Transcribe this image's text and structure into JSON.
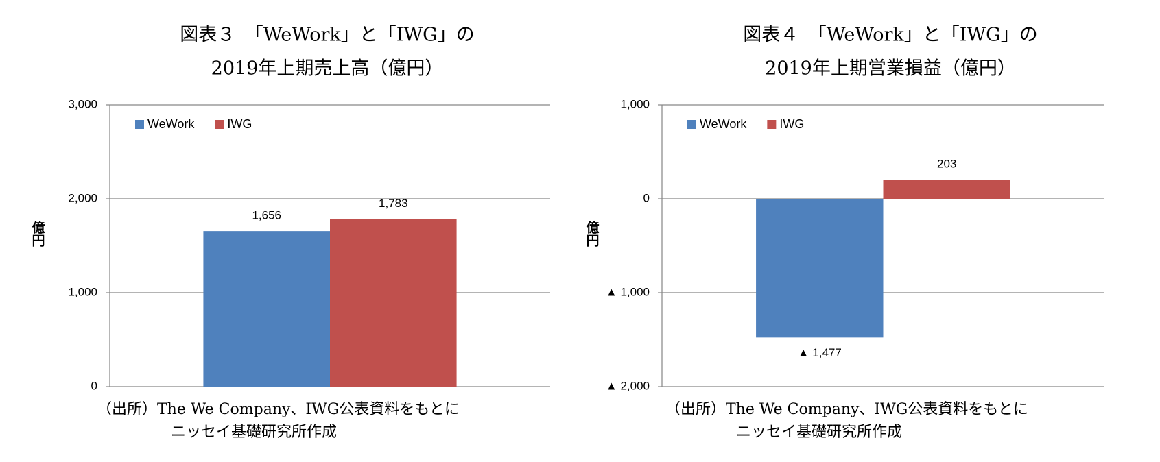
{
  "chart_data": [
    {
      "type": "bar",
      "title": [
        "図表３　「WeWork」と「IWG」の",
        "2019年上期売上高（億円）"
      ],
      "y_label": "億円",
      "categories": [
        null
      ],
      "series": [
        {
          "name": "WeWork",
          "color": "#4f81bd",
          "values": [
            1656
          ],
          "value_labels": [
            "1,656"
          ]
        },
        {
          "name": "IWG",
          "color": "#c0504d",
          "values": [
            1783
          ],
          "value_labels": [
            "1,783"
          ]
        }
      ],
      "ylim": [
        0,
        3000
      ],
      "yticks": [
        0,
        {
          "value": 1000,
          "label": "1,000"
        },
        {
          "value": 2000,
          "label": "2,000"
        },
        {
          "value": 3000,
          "label": "3,000"
        }
      ],
      "grid": true,
      "legend": "top-left",
      "source": [
        "（出所）The We Company、IWG公表資料をもとに",
        "ニッセイ基礎研究所作成"
      ]
    },
    {
      "type": "bar",
      "title": [
        "図表４　「WeWork」と「IWG」の",
        "2019年上期営業損益（億円）"
      ],
      "y_label": "億円",
      "categories": [
        null
      ],
      "series": [
        {
          "name": "WeWork",
          "color": "#4f81bd",
          "values": [
            -1477
          ],
          "value_labels": [
            "▲ 1,477"
          ]
        },
        {
          "name": "IWG",
          "color": "#c0504d",
          "values": [
            203
          ]
        }
      ],
      "ylim": [
        -2000,
        1000
      ],
      "yticks": [
        {
          "value": -2000,
          "label": "▲ 2,000"
        },
        {
          "value": -1000,
          "label": "▲ 1,000"
        },
        0,
        {
          "value": 1000,
          "label": "1,000"
        }
      ],
      "grid": true,
      "legend": "top-left",
      "source": [
        "（出所）The We Company、IWG公表資料をもとに",
        "ニッセイ基礎研究所作成"
      ]
    }
  ]
}
